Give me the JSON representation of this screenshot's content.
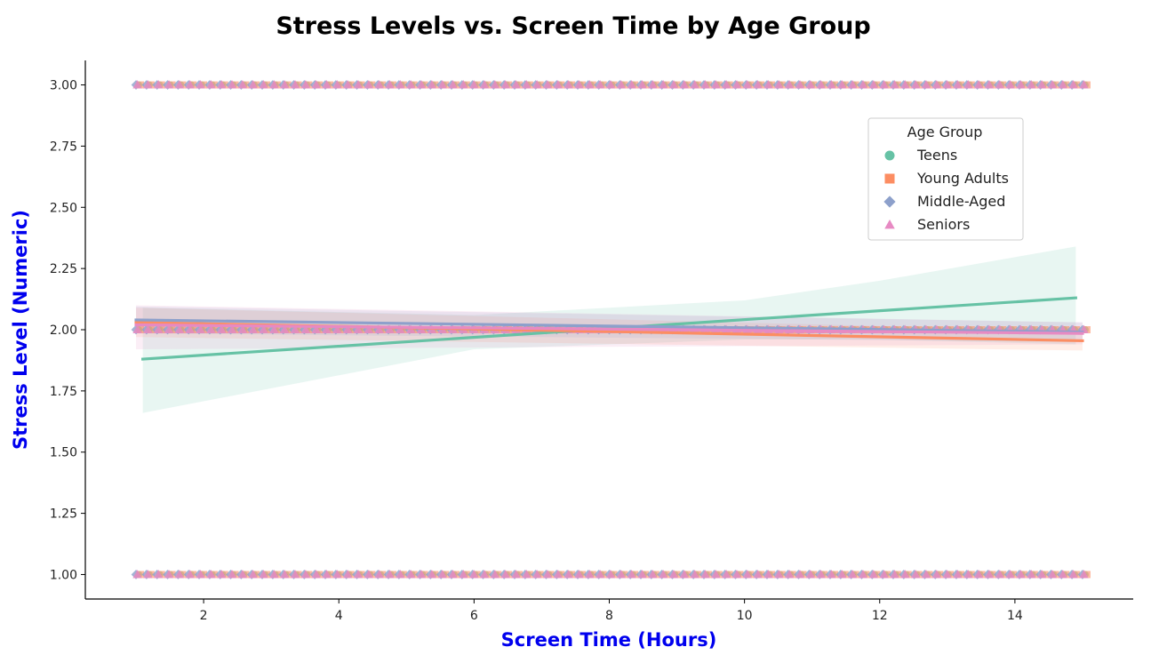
{
  "chart_data": {
    "type": "scatter",
    "title": "Stress Levels vs. Screen Time by Age Group",
    "xlabel": "Screen Time (Hours)",
    "ylabel": "Stress Level (Numeric)",
    "label_color": "#0000ee",
    "xlim": [
      0.25,
      15.75
    ],
    "ylim": [
      0.9,
      3.1
    ],
    "xticks": [
      2,
      4,
      6,
      8,
      10,
      12,
      14
    ],
    "xtick_labels": [
      "2",
      "4",
      "6",
      "8",
      "10",
      "12",
      "14"
    ],
    "yticks": [
      1.0,
      1.25,
      1.5,
      1.75,
      2.0,
      2.25,
      2.5,
      2.75,
      3.0
    ],
    "ytick_labels": [
      "1.00",
      "1.25",
      "1.50",
      "1.75",
      "2.00",
      "2.25",
      "2.50",
      "2.75",
      "3.00"
    ],
    "grid": false,
    "legend": {
      "title": "Age Group",
      "placement": "upper right",
      "entries": [
        {
          "name": "Teens",
          "marker": "circle",
          "color": "#66c2a5"
        },
        {
          "name": "Young Adults",
          "marker": "square",
          "color": "#fc8d62"
        },
        {
          "name": "Middle-Aged",
          "marker": "diamond",
          "color": "#8da0cb"
        },
        {
          "name": "Seniors",
          "marker": "triangle",
          "color": "#e78ac3"
        }
      ]
    },
    "scatter_bands": [
      {
        "y": 3.0,
        "x_range": [
          1.0,
          15.0
        ]
      },
      {
        "y": 2.0,
        "x_range": [
          1.0,
          15.0
        ]
      },
      {
        "y": 1.0,
        "x_range": [
          1.0,
          15.0
        ]
      }
    ],
    "series": [
      {
        "name": "Teens",
        "color": "#66c2a5",
        "fit": {
          "x": [
            1.1,
            14.9
          ],
          "y": [
            1.88,
            2.13
          ]
        },
        "ci": {
          "x": [
            1.1,
            6.0,
            10.0,
            12.0,
            14.9
          ],
          "upper": [
            2.09,
            2.06,
            2.12,
            2.2,
            2.34
          ],
          "lower": [
            1.66,
            1.92,
            1.96,
            1.96,
            1.94
          ]
        }
      },
      {
        "name": "Young Adults",
        "color": "#fc8d62",
        "fit": {
          "x": [
            1.0,
            15.0
          ],
          "y": [
            2.03,
            1.955
          ]
        },
        "ci": {
          "x": [
            1.0,
            15.0
          ],
          "upper": [
            2.09,
            1.995
          ],
          "lower": [
            1.97,
            1.915
          ]
        }
      },
      {
        "name": "Middle-Aged",
        "color": "#8da0cb",
        "fit": {
          "x": [
            1.0,
            15.0
          ],
          "y": [
            2.04,
            1.99
          ]
        },
        "ci": {
          "x": [
            1.0,
            15.0
          ],
          "upper": [
            2.095,
            2.03
          ],
          "lower": [
            1.985,
            1.95
          ]
        }
      },
      {
        "name": "Seniors",
        "color": "#e78ac3",
        "fit": {
          "x": [
            1.0,
            15.0
          ],
          "y": [
            2.02,
            1.985
          ]
        },
        "ci": {
          "x": [
            1.0,
            15.0
          ],
          "upper": [
            2.1,
            2.03
          ],
          "lower": [
            1.92,
            1.94
          ]
        }
      }
    ]
  }
}
